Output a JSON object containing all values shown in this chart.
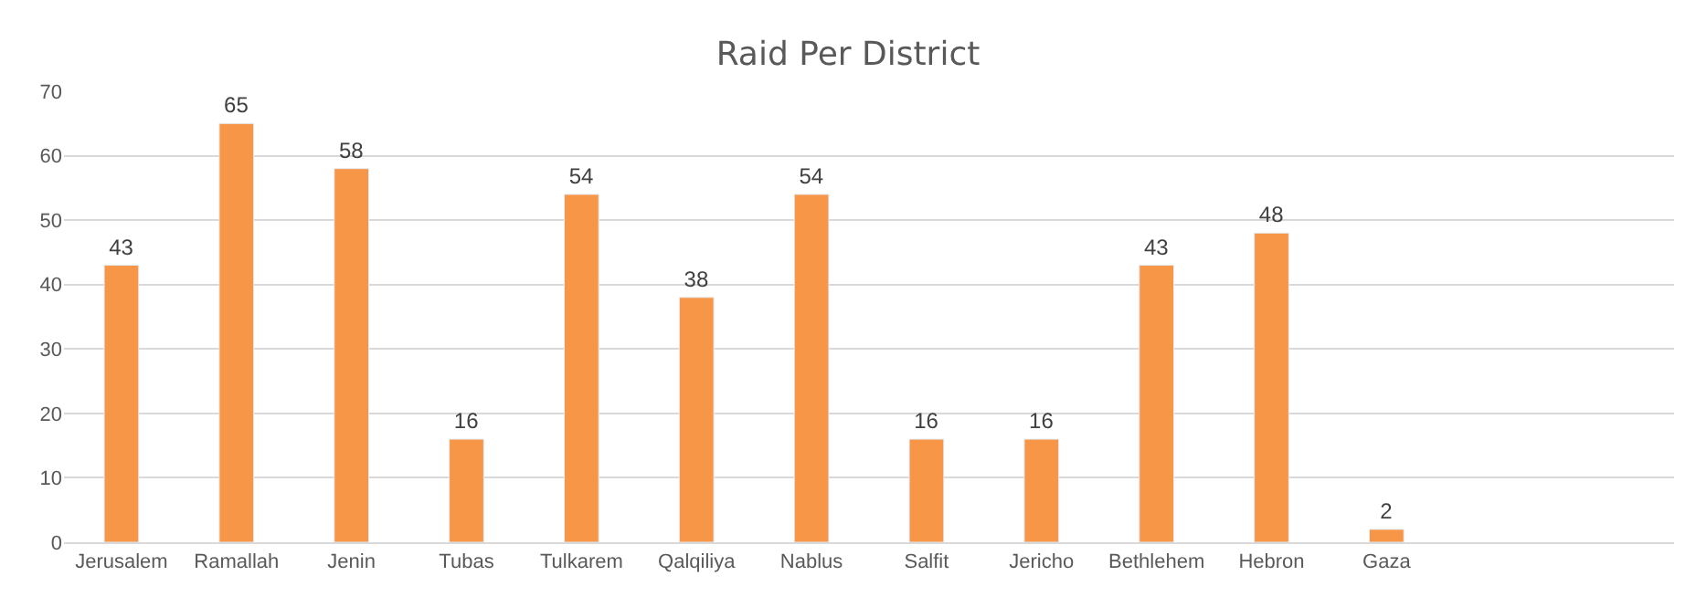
{
  "chart_data": {
    "type": "bar",
    "title": "Raid Per District",
    "categories": [
      "Jerusalem",
      "Ramallah",
      "Jenin",
      "Tubas",
      "Tulkarem",
      "Qalqiliya",
      "Nablus",
      "Salfit",
      "Jericho",
      "Bethlehem",
      "Hebron",
      "Gaza",
      null,
      null
    ],
    "values": [
      43,
      65,
      58,
      16,
      54,
      38,
      54,
      16,
      16,
      43,
      48,
      2,
      null,
      null
    ],
    "color": "#f79646",
    "ylim": [
      0,
      70
    ],
    "yticks": [
      0,
      10,
      20,
      30,
      40,
      50,
      60,
      70
    ],
    "grid": "y",
    "data_labels": true,
    "legend": false
  }
}
